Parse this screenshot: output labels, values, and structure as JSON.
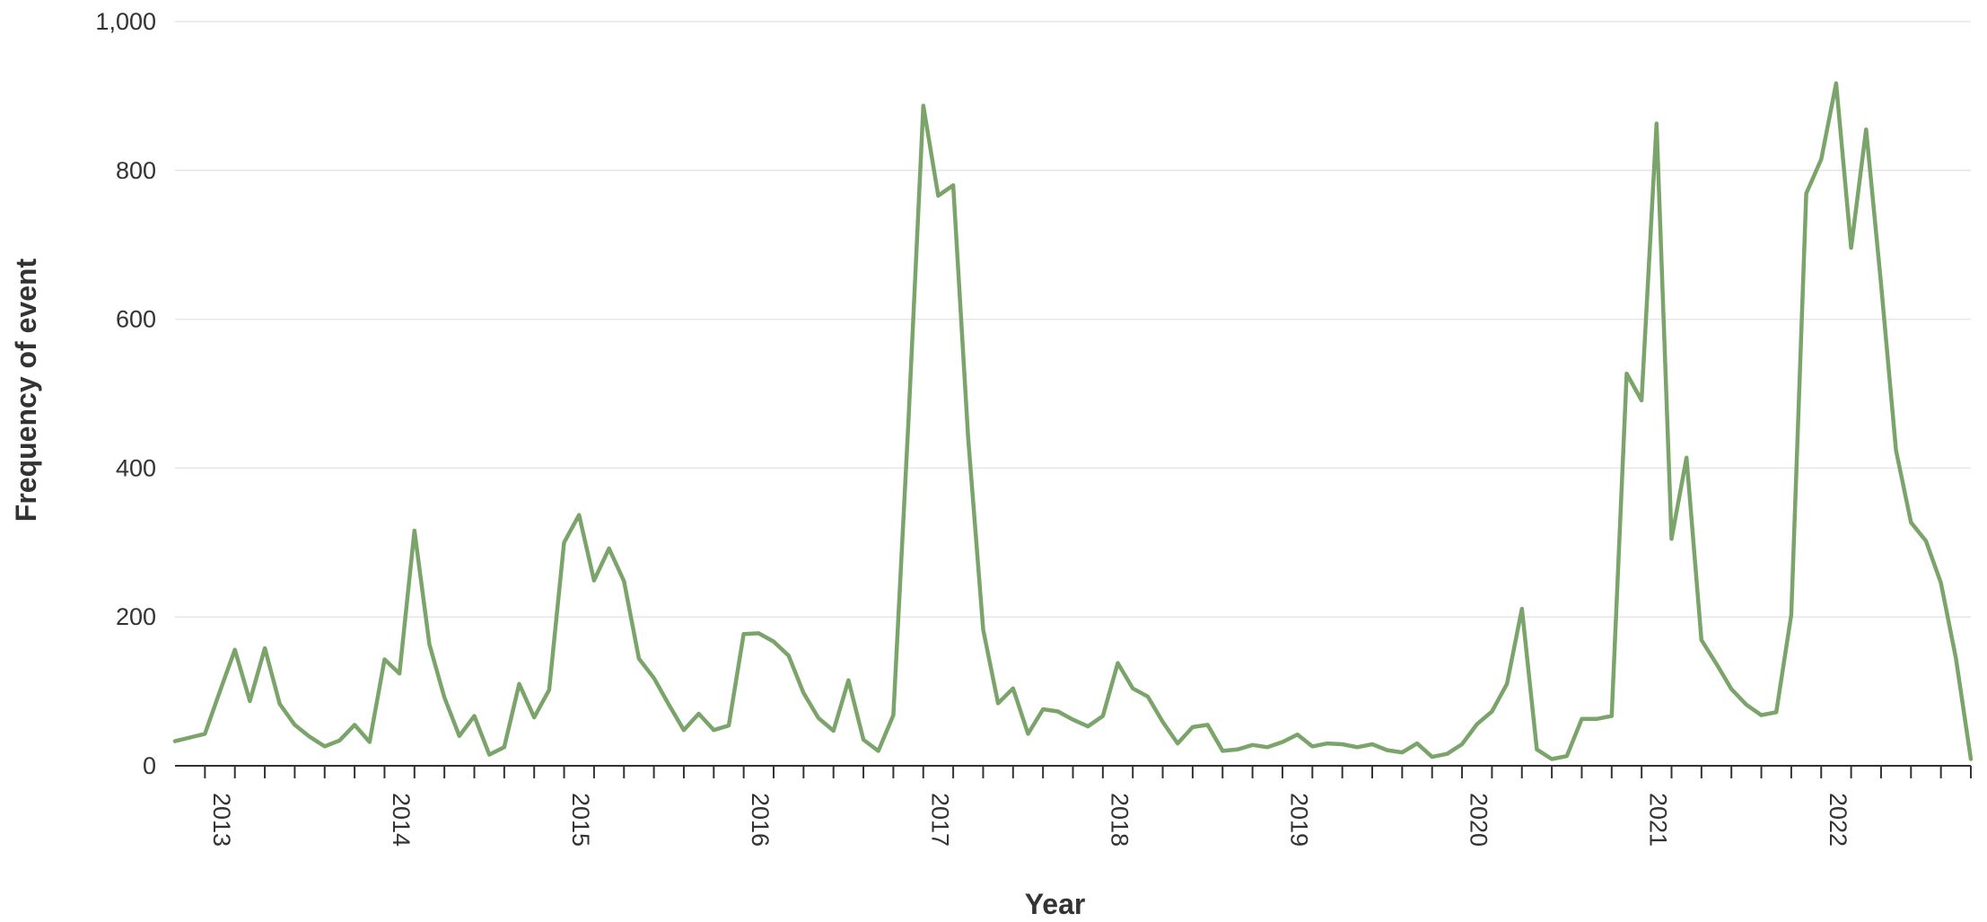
{
  "chart_data": {
    "type": "line",
    "title": "",
    "xlabel": "Year",
    "ylabel": "Frequency of event",
    "ylim": [
      0,
      1000
    ],
    "y_ticks": [
      0,
      200,
      400,
      600,
      800,
      1000
    ],
    "y_tick_labels": [
      "0",
      "200",
      "400",
      "600",
      "800",
      "1,000"
    ],
    "x_tick_labels": [
      "2013",
      "2014",
      "2015",
      "2016",
      "2017",
      "2018",
      "2019",
      "2020",
      "2021",
      "2022"
    ],
    "x_start": "2012-10",
    "x_end": "2022-10",
    "grid": true,
    "line_color": "#7ba46a",
    "series": [
      {
        "values": [
          33,
          38,
          43,
          100,
          156,
          87,
          158,
          83,
          55,
          39,
          26,
          34,
          55,
          32,
          143,
          124,
          316,
          163,
          92,
          40,
          67,
          15,
          25,
          110,
          65,
          102,
          300,
          337,
          249,
          292,
          248,
          144,
          118,
          82,
          48,
          70,
          48,
          54,
          177,
          178,
          167,
          148,
          98,
          64,
          47,
          115,
          35,
          20,
          68,
          460,
          887,
          766,
          780,
          440,
          183,
          84,
          104,
          43,
          76,
          73,
          62,
          53,
          67,
          138,
          104,
          93,
          59,
          30,
          52,
          55,
          20,
          22,
          28,
          25,
          32,
          42,
          26,
          30,
          29,
          25,
          29,
          21,
          18,
          30,
          12,
          16,
          29,
          56,
          73,
          110,
          211,
          22,
          9,
          13,
          63,
          63,
          67,
          527,
          491,
          863,
          305,
          414,
          169,
          137,
          103,
          82,
          68,
          72,
          203,
          769,
          815,
          917,
          696,
          855,
          648,
          424,
          327,
          302,
          246,
          145,
          9
        ]
      }
    ]
  }
}
